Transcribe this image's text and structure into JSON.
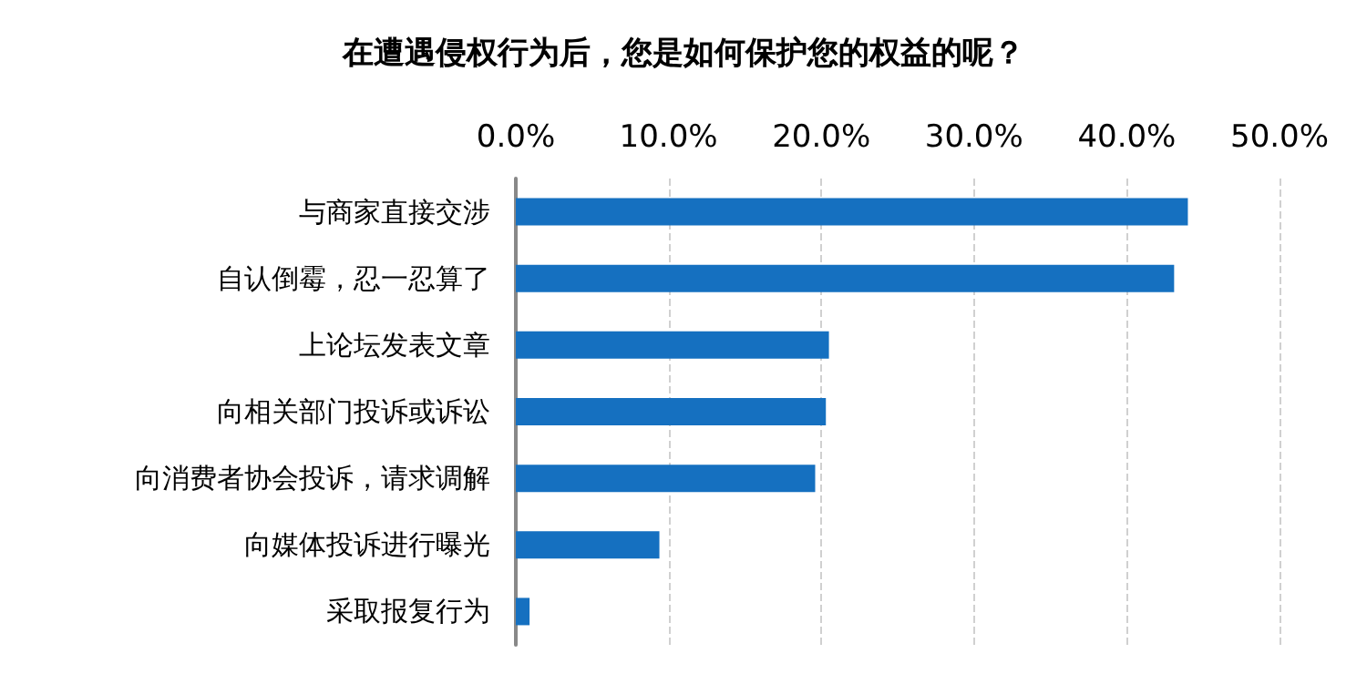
{
  "chart_data": {
    "type": "bar",
    "orientation": "horizontal",
    "title": "在遭遇侵权行为后，您是如何保护您的权益的呢？",
    "categories": [
      "与商家直接交涉",
      "自认倒霉，忍一忍算了",
      "上论坛发表文章",
      "向相关部门投诉或诉讼",
      "向消费者协会投诉，请求调解",
      "向媒体投诉进行曝光",
      "采取报复行为"
    ],
    "values": [
      44.0,
      43.1,
      20.5,
      20.3,
      19.6,
      9.4,
      0.9
    ],
    "color": "#1570c0",
    "xlim": [
      0,
      50
    ],
    "xticks": [
      {
        "value": 0,
        "label": "0.0%"
      },
      {
        "value": 10,
        "label": "10.0%"
      },
      {
        "value": 20,
        "label": "20.0%"
      },
      {
        "value": 30,
        "label": "30.0%"
      },
      {
        "value": 40,
        "label": "40.0%"
      },
      {
        "value": 50,
        "label": "50.0%"
      }
    ],
    "grid": "x"
  }
}
